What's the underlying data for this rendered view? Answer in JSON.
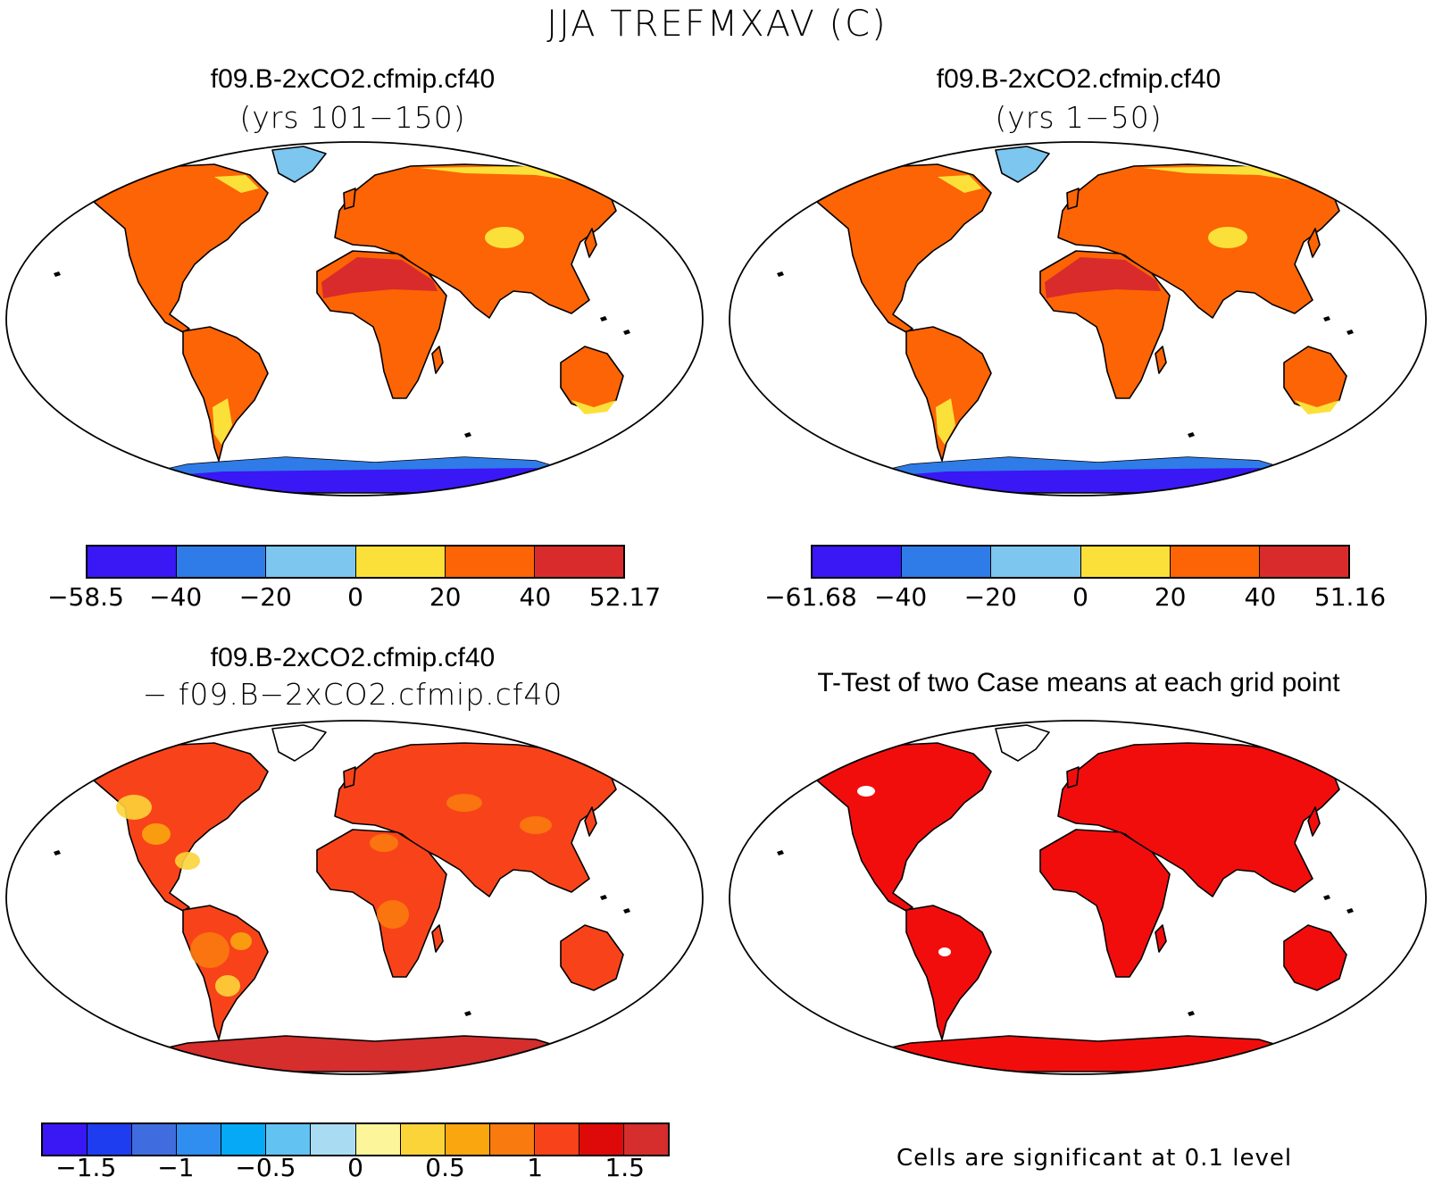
{
  "title": "JJA TREFMXAV (C)",
  "panels": [
    {
      "title": "f09.B-2xCO2.cfmip.cf40",
      "subtitle": "(yrs 101−150)",
      "scheme": "abs",
      "colorbar": {
        "colors": [
          "#3a17f5",
          "#2f7be8",
          "#7cc6f0",
          "#fbe03a",
          "#fc6405",
          "#d92b2b"
        ],
        "labels": [
          "−58.5",
          "−40",
          "−20",
          "0",
          "20",
          "40",
          "52.17"
        ]
      }
    },
    {
      "title": "f09.B-2xCO2.cfmip.cf40",
      "subtitle": "(yrs 1−50)",
      "scheme": "abs",
      "colorbar": {
        "colors": [
          "#3a17f5",
          "#2f7be8",
          "#7cc6f0",
          "#fbe03a",
          "#fc6405",
          "#d92b2b"
        ],
        "labels": [
          "−61.68",
          "−40",
          "−20",
          "0",
          "20",
          "40",
          "51.16"
        ]
      }
    },
    {
      "title": "f09.B-2xCO2.cfmip.cf40",
      "subtitle": "− f09.B−2xCO2.cfmip.cf40",
      "scheme": "diff",
      "colorbar": {
        "colors": [
          "#3a17f5",
          "#1e3cf0",
          "#3f6de0",
          "#2f8ef0",
          "#06a9f5",
          "#62c3f2",
          "#a9dcf3",
          "#fdf59a",
          "#fbd43a",
          "#f9a60f",
          "#f97a0e",
          "#f8431a",
          "#de0a0a",
          "#d62d2d"
        ],
        "labels": [
          "−1.5",
          "−1",
          "−0.5",
          "0",
          "0.5",
          "1",
          "1.5"
        ]
      }
    },
    {
      "title": "T-Test of two Case means at each grid point",
      "scheme": "ttest",
      "note": "Cells are significant at 0.1 level"
    }
  ]
}
